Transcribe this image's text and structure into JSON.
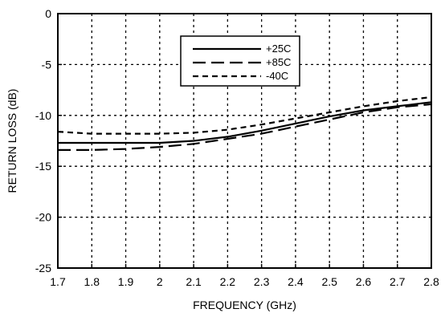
{
  "chart_data": {
    "type": "line",
    "xlabel": "FREQUENCY (GHz)",
    "ylabel": "RETURN LOSS (dB)",
    "xlim": [
      1.7,
      2.8
    ],
    "ylim": [
      -25,
      0
    ],
    "xticks": [
      "1.7",
      "1.8",
      "1.9",
      "2",
      "2.1",
      "2.2",
      "2.3",
      "2.4",
      "2.5",
      "2.6",
      "2.7",
      "2.8"
    ],
    "yticks": [
      "0",
      "-5",
      "-10",
      "-15",
      "-20",
      "-25"
    ],
    "grid": true,
    "legend_position": "top-center",
    "series": [
      {
        "name": "+25C",
        "style": "solid",
        "x": [
          1.7,
          1.8,
          1.9,
          2.0,
          2.1,
          2.2,
          2.3,
          2.4,
          2.5,
          2.6,
          2.7,
          2.8
        ],
        "y": [
          -12.7,
          -12.7,
          -12.7,
          -12.7,
          -12.5,
          -12.1,
          -11.5,
          -10.8,
          -10.1,
          -9.5,
          -9.1,
          -8.7
        ]
      },
      {
        "name": "+85C",
        "style": "longdash",
        "x": [
          1.7,
          1.8,
          1.9,
          2.0,
          2.1,
          2.2,
          2.3,
          2.4,
          2.5,
          2.6,
          2.7,
          2.8
        ],
        "y": [
          -13.4,
          -13.4,
          -13.3,
          -13.1,
          -12.8,
          -12.3,
          -11.8,
          -11.1,
          -10.4,
          -9.7,
          -9.2,
          -8.9
        ]
      },
      {
        "name": "-40C",
        "style": "shortdash",
        "x": [
          1.7,
          1.8,
          1.9,
          2.0,
          2.1,
          2.2,
          2.3,
          2.4,
          2.5,
          2.6,
          2.7,
          2.8
        ],
        "y": [
          -11.6,
          -11.8,
          -11.8,
          -11.8,
          -11.7,
          -11.4,
          -10.9,
          -10.3,
          -9.7,
          -9.1,
          -8.6,
          -8.2
        ]
      }
    ]
  }
}
